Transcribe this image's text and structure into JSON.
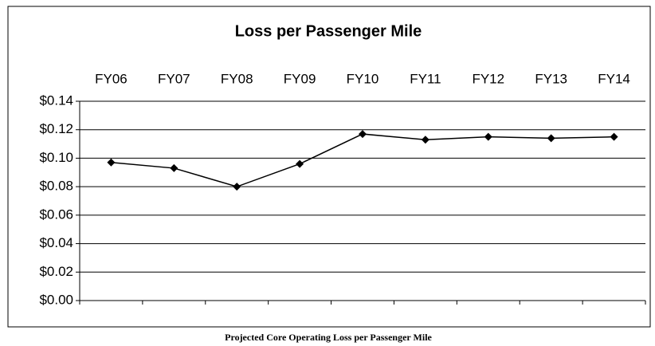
{
  "chart_data": {
    "type": "line",
    "title": "Loss per Passenger Mile",
    "caption": "Projected Core Operating Loss per Passenger Mile",
    "categories": [
      "FY06",
      "FY07",
      "FY08",
      "FY09",
      "FY10",
      "FY11",
      "FY12",
      "FY13",
      "FY14"
    ],
    "series": [
      {
        "name": "Loss per Passenger Mile",
        "color": "#000000",
        "values": [
          0.097,
          0.093,
          0.08,
          0.096,
          0.117,
          0.113,
          0.115,
          0.114,
          0.115
        ]
      }
    ],
    "ylim": [
      0,
      0.14
    ],
    "yticks": [
      {
        "value": 0,
        "label": "$0.00"
      },
      {
        "value": 0.02,
        "label": "$0.02"
      },
      {
        "value": 0.04,
        "label": "$0.04"
      },
      {
        "value": 0.06,
        "label": "$0.06"
      },
      {
        "value": 0.08,
        "label": "$0.08"
      },
      {
        "value": 0.1,
        "label": "$0.10"
      },
      {
        "value": 0.12,
        "label": "$0.12"
      },
      {
        "value": 0.14,
        "label": "$0.14"
      }
    ],
    "grid": true
  }
}
